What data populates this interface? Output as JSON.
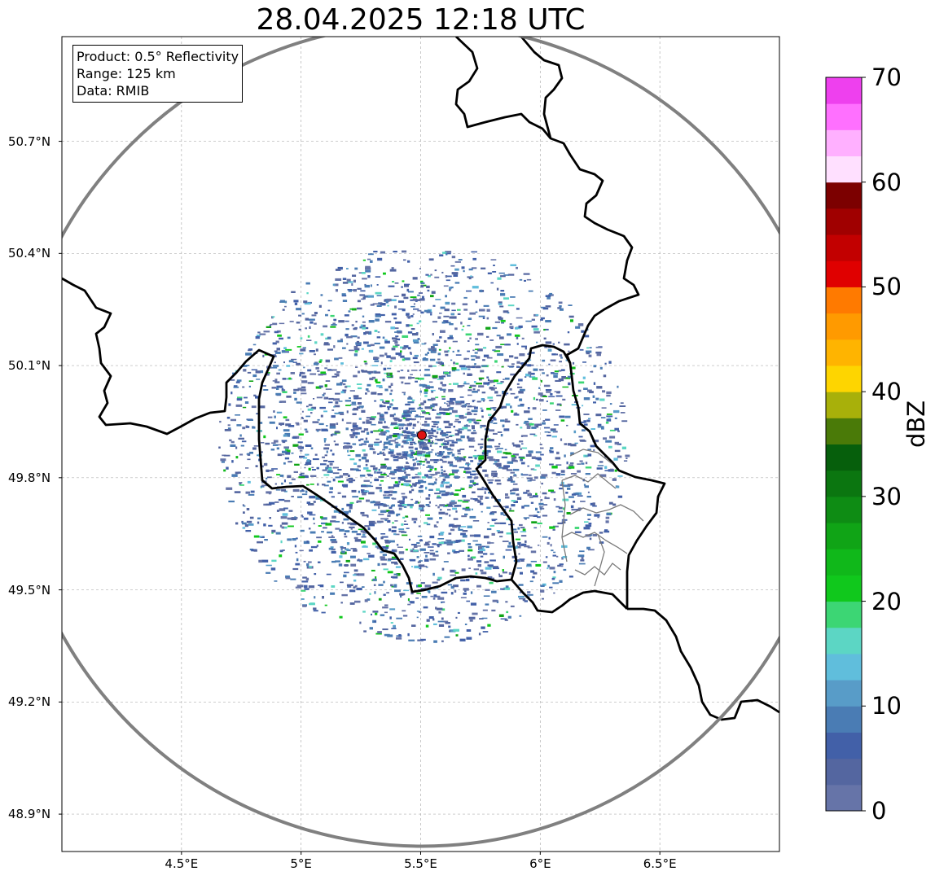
{
  "title": "28.04.2025 12:18 UTC",
  "info_box": {
    "product": "Product: 0.5° Reflectivity",
    "range": "Range: 125 km",
    "data": "Data: RMIB"
  },
  "map": {
    "lon_range": [
      4.0,
      7.0
    ],
    "lat_range": [
      48.8,
      50.98
    ],
    "lat_ticks": [
      {
        "value": 50.7,
        "label": "50.7°N"
      },
      {
        "value": 50.4,
        "label": "50.4°N"
      },
      {
        "value": 50.1,
        "label": "50.1°N"
      },
      {
        "value": 49.8,
        "label": "49.8°N"
      },
      {
        "value": 49.5,
        "label": "49.5°N"
      },
      {
        "value": 49.2,
        "label": "49.2°N"
      },
      {
        "value": 48.9,
        "label": "48.9°N"
      }
    ],
    "lon_ticks": [
      {
        "value": 4.5,
        "label": "4.5°E"
      },
      {
        "value": 5.0,
        "label": "5°E"
      },
      {
        "value": 5.5,
        "label": "5.5°E"
      },
      {
        "value": 6.0,
        "label": "6°E"
      },
      {
        "value": 6.5,
        "label": "6.5°E"
      }
    ],
    "radar_site": {
      "lon": 5.505,
      "lat": 49.914,
      "color": "#dd1111"
    },
    "range_ring_color": "#808080",
    "border_color": "#000000",
    "grid": true
  },
  "colorbar": {
    "label": "dBZ",
    "min": 0,
    "max": 70,
    "ticks": [
      "0",
      "10",
      "20",
      "30",
      "40",
      "50",
      "60",
      "70"
    ],
    "colors": [
      "#6674a8",
      "#5466a0",
      "#4260a8",
      "#4a7cb4",
      "#589cc8",
      "#60bedc",
      "#5cd6c4",
      "#3cd674",
      "#10c81c",
      "#10b81a",
      "#10a416",
      "#0e8c14",
      "#0b7610",
      "#065f0c",
      "#4a7a08",
      "#a8b00a",
      "#fed500",
      "#ffb400",
      "#ff9a00",
      "#ff7a00",
      "#e00000",
      "#c20000",
      "#a00000",
      "#7c0000",
      "#ffe0ff",
      "#ffb0ff",
      "#ff70ff",
      "#ee40ee"
    ]
  }
}
